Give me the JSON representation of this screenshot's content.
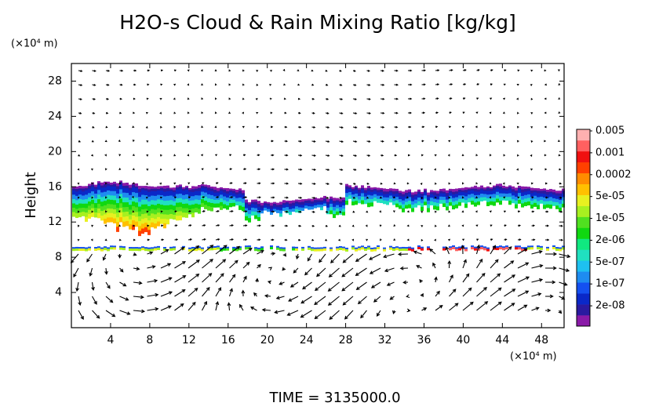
{
  "chart_data": {
    "type": "contour",
    "title": "H2O-s Cloud & Rain Mixing Ratio [kg/kg]",
    "ylabel": "Height",
    "y_unit": "(×10⁴ m)",
    "x_unit": "(×10⁴ m)",
    "footer": "TIME = 3135000.0",
    "xlim": [
      0,
      50.3
    ],
    "xticks": [
      4,
      8,
      12,
      16,
      20,
      24,
      28,
      32,
      36,
      40,
      44,
      48
    ],
    "ylim": [
      0,
      30
    ],
    "yticks": [
      4,
      8,
      12,
      16,
      20,
      24,
      28
    ],
    "colorbar": {
      "levels": [
        {
          "value": 2e-08,
          "label": "2e-08"
        },
        {
          "value": 1e-07,
          "label": "1e-07"
        },
        {
          "value": 5e-07,
          "label": "5e-07"
        },
        {
          "value": 2e-06,
          "label": "2e-06"
        },
        {
          "value": 1e-05,
          "label": "1e-05"
        },
        {
          "value": 5e-05,
          "label": "5e-05"
        },
        0.0002,
        0.001,
        0.005
      ],
      "colors": [
        "#8a1aa8",
        "#2a1aa0",
        "#0a28c8",
        "#1450f0",
        "#1e8cf0",
        "#1ec0f0",
        "#20e0c0",
        "#10e880",
        "#10d810",
        "#50e020",
        "#a8f020",
        "#e8f020",
        "#ffc000",
        "#ff8c00",
        "#ff4000",
        "#f01010",
        "#ff6060",
        "#ffb0b0"
      ]
    }
  }
}
